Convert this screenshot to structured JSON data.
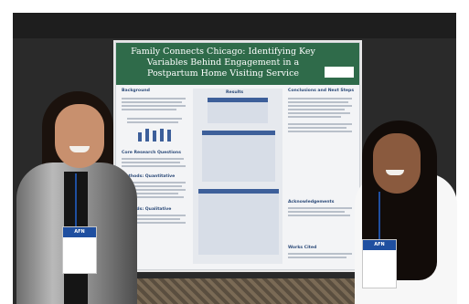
{
  "poster": {
    "title": "Family Connects Chicago: Identifying Key Variables Behind Engagement in a Postpartum Home Visiting Service",
    "authors": "",
    "logo_text": "",
    "sections": {
      "background": "Background",
      "results": "Results",
      "research_questions": "Core Research Questions",
      "methods_quant": "Methods: Quantitative",
      "methods_qual": "Methods: Qualitative",
      "conclusions": "Conclusions and Next Steps",
      "acknowledgements": "Acknowledgements",
      "works_cited": "Works Cited"
    }
  },
  "badges": {
    "left": {
      "band_text": "AFN",
      "name": ""
    },
    "right": {
      "band_text": "AFN",
      "name": ""
    }
  },
  "colors": {
    "poster_header": "#2f6b4a",
    "poster_accent": "#3d5f9a",
    "badge_blue": "#1f4fa0"
  }
}
